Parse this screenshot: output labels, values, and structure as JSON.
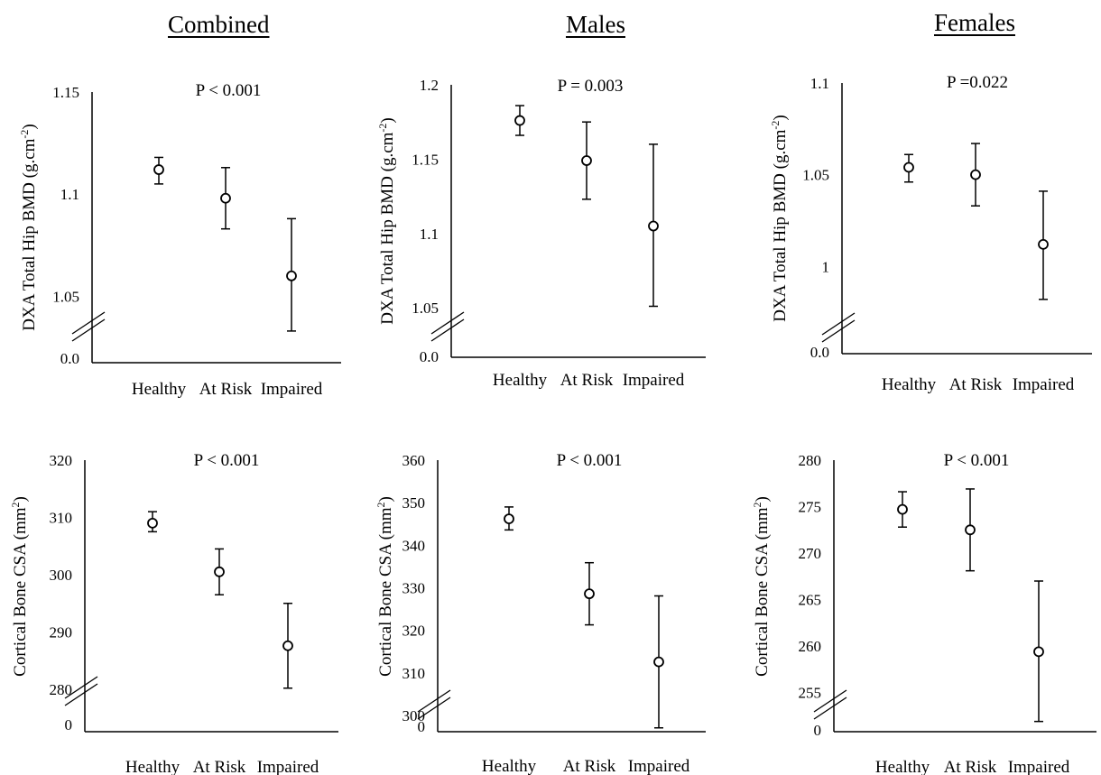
{
  "column_titles": [
    "Combined",
    "Males",
    "Females"
  ],
  "chart_data": [
    {
      "type": "errorbar",
      "group": "Combined",
      "ylabel": "DXA Total Hip BMD (g.cm-2)",
      "annotation": "P < 0.001",
      "categories": [
        "Healthy",
        "At Risk",
        "Impaired"
      ],
      "yticks": [
        "1.05",
        "1.1",
        "1.15"
      ],
      "ylim": [
        1.0175,
        1.15
      ],
      "y_break_label": "0.0",
      "means": [
        1.112,
        1.098,
        1.06
      ],
      "lower": [
        1.105,
        1.083,
        1.033
      ],
      "upper": [
        1.118,
        1.113,
        1.088
      ]
    },
    {
      "type": "errorbar",
      "group": "Males",
      "ylabel": "DXA Total Hip BMD (g.cm-2)",
      "annotation": "P = 0.003",
      "categories": [
        "Healthy",
        "At Risk",
        "Impaired"
      ],
      "yticks": [
        "1.05",
        "1.1",
        "1.15",
        "1.2"
      ],
      "ylim": [
        1.0167,
        1.2
      ],
      "y_break_label": "0.0",
      "means": [
        1.176,
        1.149,
        1.105
      ],
      "lower": [
        1.166,
        1.123,
        1.051
      ],
      "upper": [
        1.186,
        1.175,
        1.16
      ]
    },
    {
      "type": "errorbar",
      "group": "Females",
      "ylabel": "DXA Total Hip BMD (g.cm-2)",
      "annotation": "P =0.022",
      "categories": [
        "Healthy",
        "At Risk",
        "Impaired"
      ],
      "yticks": [
        "1",
        "1.05",
        "1.1"
      ],
      "ylim": [
        0.9524,
        1.1
      ],
      "y_break_label": "0.0",
      "means": [
        1.054,
        1.05,
        1.012
      ],
      "lower": [
        1.046,
        1.033,
        0.982
      ],
      "upper": [
        1.061,
        1.067,
        1.041
      ]
    },
    {
      "type": "errorbar",
      "group": "Combined",
      "ylabel": "Cortical Bone CSA (mm2)",
      "annotation": "P < 0.001",
      "categories": [
        "Healthy",
        "At Risk",
        "Impaired"
      ],
      "yticks": [
        "280",
        "290",
        "300",
        "310",
        "320"
      ],
      "ylim": [
        272.6,
        320
      ],
      "y_break_label": "0",
      "means": [
        309.0,
        300.5,
        287.6
      ],
      "lower": [
        307.5,
        296.5,
        280.2
      ],
      "upper": [
        311.0,
        304.5,
        295.0
      ]
    },
    {
      "type": "errorbar",
      "group": "Males",
      "ylabel": "Cortical Bone CSA (mm2)",
      "annotation": "P < 0.001",
      "categories": [
        "Healthy",
        "At Risk",
        "Impaired"
      ],
      "yticks": [
        "300",
        "310",
        "320",
        "330",
        "340",
        "350",
        "360"
      ],
      "ylim": [
        296.2,
        360
      ],
      "y_break_label": "0",
      "means": [
        346.2,
        328.6,
        312.6
      ],
      "lower": [
        343.6,
        321.3,
        297.1
      ],
      "upper": [
        349.0,
        335.9,
        328.1
      ]
    },
    {
      "type": "errorbar",
      "group": "Females",
      "ylabel": "Cortical Bone CSA (mm2)",
      "annotation": "P < 0.001",
      "categories": [
        "Healthy",
        "At Risk",
        "Impaired"
      ],
      "yticks": [
        "255",
        "260",
        "265",
        "270",
        "275",
        "280"
      ],
      "ylim": [
        250.8,
        280
      ],
      "y_break_label": "0",
      "means": [
        274.7,
        272.5,
        259.4
      ],
      "lower": [
        272.8,
        268.1,
        251.9
      ],
      "upper": [
        276.6,
        276.9,
        267.0
      ]
    }
  ]
}
